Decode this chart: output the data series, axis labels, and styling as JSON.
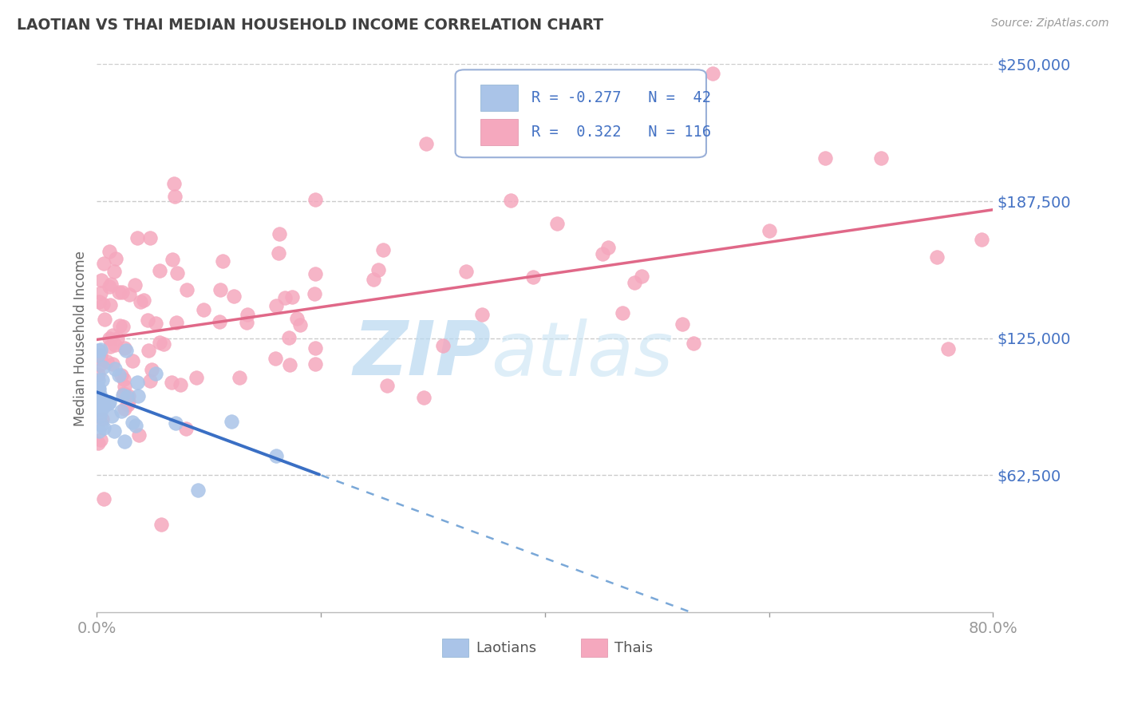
{
  "title": "LAOTIAN VS THAI MEDIAN HOUSEHOLD INCOME CORRELATION CHART",
  "source": "Source: ZipAtlas.com",
  "ylabel": "Median Household Income",
  "xlim": [
    0.0,
    0.8
  ],
  "ylim": [
    0,
    250000
  ],
  "yticks": [
    0,
    62500,
    125000,
    187500,
    250000
  ],
  "ytick_labels": [
    "",
    "$62,500",
    "$125,000",
    "$187,500",
    "$250,000"
  ],
  "watermark_zip": "ZIP",
  "watermark_atlas": "atlas",
  "legend_r_laotian": "-0.277",
  "legend_n_laotian": "42",
  "legend_r_thai": "0.322",
  "legend_n_thai": "116",
  "laotian_color": "#aac4e8",
  "thai_color": "#f5a8be",
  "laotian_line_color": "#3a6fc4",
  "laotian_dash_color": "#7aa8d8",
  "thai_line_color": "#e06888",
  "axis_color": "#4472c4",
  "grid_color": "#cccccc",
  "title_color": "#404040",
  "background_color": "#ffffff",
  "legend_box_color": "#e8f0fc",
  "bottom_legend_label_color": "#555555"
}
